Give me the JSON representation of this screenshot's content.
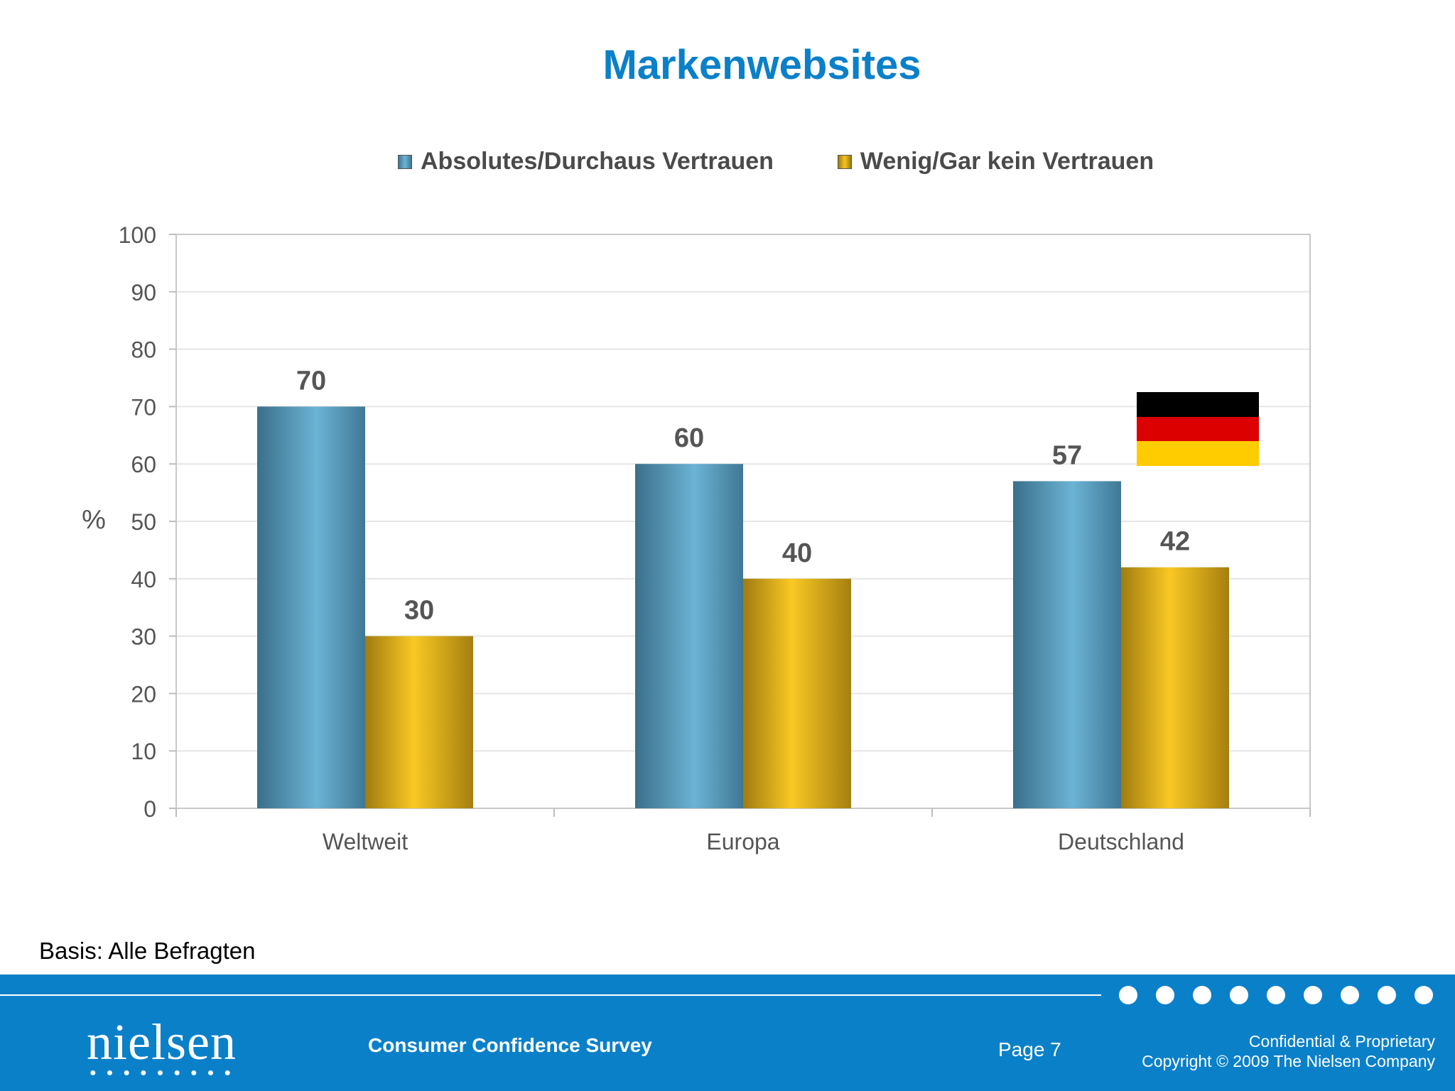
{
  "title": "Markenwebsites",
  "footnote": "Basis: Alle Befragten",
  "footer": {
    "logo": "nielsen",
    "survey": "Consumer Confidence Survey",
    "page": "Page 7",
    "confidential_line1": "Confidential & Proprietary",
    "confidential_line2": "Copyright © 2009 The Nielsen Company"
  },
  "colors": {
    "title": "#0a80c9",
    "footer": "#0a80c9",
    "series_blue": "#5fa8cc",
    "series_gold": "#f2bf1f"
  },
  "icons": {
    "flag": "germany-flag-icon"
  },
  "chart_data": {
    "type": "bar",
    "title": "Markenwebsites",
    "categories": [
      "Weltweit",
      "Europa",
      "Deutschland"
    ],
    "series": [
      {
        "name": "Absolutes/Durchaus Vertrauen",
        "values": [
          70,
          60,
          57
        ]
      },
      {
        "name": "Wenig/Gar kein Vertrauen",
        "values": [
          30,
          40,
          42
        ]
      }
    ],
    "xlabel": "",
    "ylabel": "%",
    "ylim": [
      0,
      100
    ],
    "yticks": [
      0,
      10,
      20,
      30,
      40,
      50,
      60,
      70,
      80,
      90,
      100
    ],
    "grid": true,
    "legend": "top"
  }
}
